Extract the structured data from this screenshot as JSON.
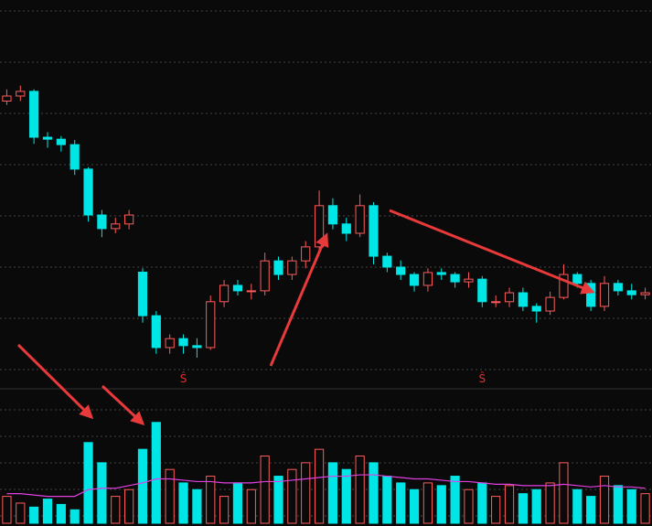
{
  "chart_data": {
    "type": "candlestick",
    "grid": true,
    "background": "#0a0a0a",
    "up_color": "#ff5a5a",
    "down_color": "#00e5e5",
    "ma_color": "#e040e0",
    "signal_color": "#e03030",
    "ylim": [
      0,
      100
    ],
    "volume_ylim": [
      0,
      100
    ],
    "open": [
      74,
      75.3,
      76.5,
      64.7,
      64.2,
      62.8,
      56.5,
      44.7,
      41.2,
      42.4,
      30,
      18.8,
      10.6,
      12.9,
      11.1,
      10.6,
      22.4,
      26.6,
      25.2,
      25.2,
      32.9,
      29.4,
      32.9,
      36.5,
      47.1,
      42.4,
      40.0,
      47.1,
      34.1,
      31.3,
      29.4,
      26.6,
      29.9,
      29.4,
      27.5,
      28.2,
      22.4,
      22.4,
      24.7,
      21.2,
      20.0,
      23.5,
      29.4,
      27.1,
      21.2,
      27.1,
      25.2,
      24.2
    ],
    "high": [
      77,
      78,
      77,
      66,
      65,
      64,
      57,
      46,
      44,
      46,
      31,
      20,
      14,
      14,
      13,
      24,
      28,
      28,
      27,
      35,
      34,
      34,
      38,
      51,
      49,
      44,
      50,
      48,
      35,
      33,
      30,
      31,
      31,
      30,
      30,
      29,
      24,
      26,
      26,
      22,
      25,
      32,
      30,
      28,
      29,
      28,
      27,
      26
    ],
    "low": [
      73,
      74,
      63,
      62,
      61,
      55,
      43,
      39,
      40,
      41,
      17,
      9,
      9,
      9,
      8,
      10,
      21,
      24,
      23,
      24,
      28,
      28,
      31,
      35,
      41,
      38,
      39,
      32,
      30,
      28,
      25,
      25,
      28,
      26,
      26,
      21,
      21,
      21,
      20,
      17,
      19,
      23,
      26,
      20,
      20,
      24,
      23,
      23
    ],
    "close": [
      75.3,
      76.5,
      64.7,
      64.2,
      62.8,
      56.5,
      44.7,
      41.2,
      42.4,
      44.7,
      18.8,
      10.6,
      12.9,
      11.1,
      10.6,
      22.4,
      26.6,
      25.2,
      25.2,
      32.9,
      29.4,
      32.9,
      36.5,
      47.1,
      42.4,
      40.0,
      47.1,
      34.1,
      31.3,
      29.4,
      26.6,
      29.9,
      29.4,
      27.5,
      28.2,
      22.4,
      22.4,
      24.7,
      21.2,
      20.0,
      23.5,
      29.4,
      27.1,
      21.2,
      27.1,
      25.2,
      24.2,
      24.7
    ],
    "volume": [
      20,
      15,
      12,
      18,
      14,
      10,
      60,
      45,
      20,
      25,
      55,
      75,
      40,
      30,
      25,
      35,
      20,
      30,
      25,
      50,
      35,
      40,
      45,
      55,
      45,
      40,
      50,
      45,
      35,
      30,
      25,
      30,
      28,
      35,
      25,
      30,
      20,
      28,
      22,
      25,
      30,
      45,
      25,
      20,
      35,
      28,
      25,
      22
    ],
    "volume_ma": [
      22,
      22,
      21,
      20,
      20,
      20,
      25,
      26,
      26,
      28,
      30,
      33,
      33,
      32,
      31,
      31,
      30,
      30,
      30,
      31,
      31,
      32,
      33,
      34,
      35,
      35,
      36,
      36,
      35,
      34,
      33,
      33,
      32,
      31,
      31,
      30,
      29,
      29,
      28,
      28,
      28,
      29,
      28,
      27,
      28,
      27,
      27,
      26
    ],
    "signal_labels": [
      null,
      null,
      null,
      null,
      null,
      null,
      null,
      null,
      null,
      null,
      null,
      null,
      null,
      "Ŝ",
      null,
      null,
      null,
      null,
      null,
      null,
      null,
      null,
      null,
      null,
      null,
      null,
      null,
      null,
      null,
      null,
      null,
      null,
      null,
      null,
      null,
      "Ŝ",
      null,
      null,
      null,
      null,
      null,
      null,
      null,
      null,
      null,
      null,
      null,
      null
    ]
  }
}
